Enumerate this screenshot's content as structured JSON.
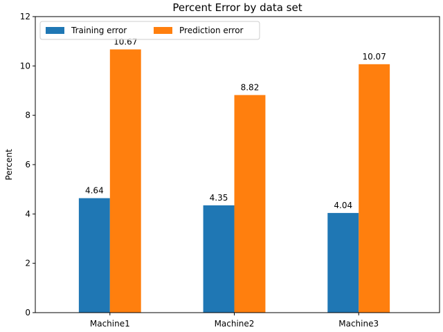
{
  "chart_data": {
    "type": "bar",
    "title": "Percent Error by data set",
    "xlabel": "",
    "ylabel": "Percent",
    "categories": [
      "Machine1",
      "Machine2",
      "Machine3"
    ],
    "series": [
      {
        "name": "Training error",
        "values": [
          4.64,
          4.35,
          4.04
        ],
        "labels": [
          "4.64",
          "4.35",
          "4.04"
        ],
        "color": "#1f77b4"
      },
      {
        "name": "Prediction error",
        "values": [
          10.67,
          8.82,
          10.07
        ],
        "labels": [
          "10.67",
          "8.82",
          "10.07"
        ],
        "color": "#ff7f0e"
      }
    ],
    "ylim": [
      0,
      12
    ],
    "yticks": [
      0,
      2,
      4,
      6,
      8,
      10,
      12
    ],
    "grid": false,
    "legend": {
      "placement": "top-left",
      "columns": 2
    }
  }
}
